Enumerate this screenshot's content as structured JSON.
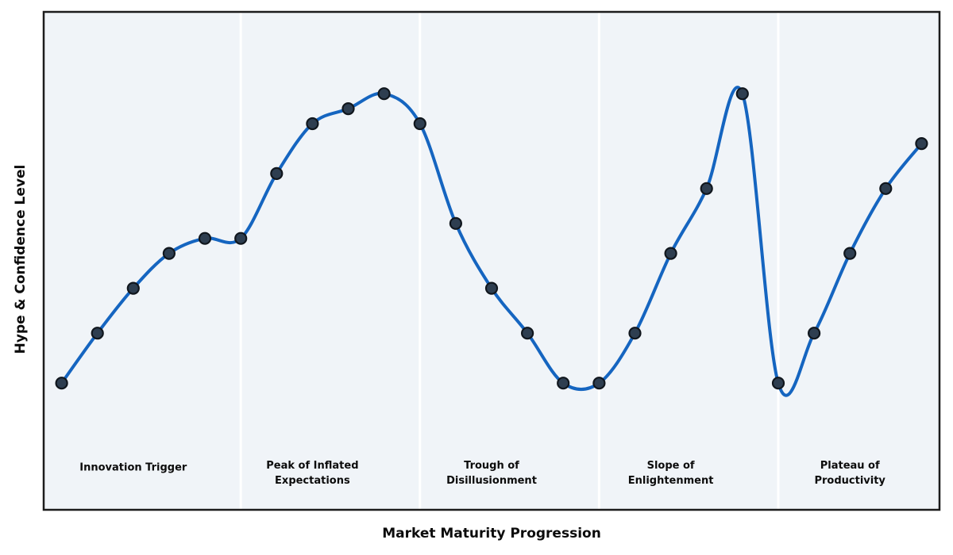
{
  "figure": {
    "background": "#ffffff",
    "plot_background": "#f0f4f8",
    "border_color": "#1c1c1c",
    "divider_color": "#ffffff",
    "text_color": "#0c0c0c"
  },
  "chart_data": {
    "type": "line",
    "title": "",
    "xlabel": "Market Maturity Progression",
    "ylabel": "Hype & Confidence Level",
    "x": [
      0,
      1,
      2,
      3,
      4,
      5,
      6,
      7,
      8,
      9,
      10,
      11,
      12,
      13,
      14,
      15,
      16,
      17,
      18,
      19,
      20,
      21,
      22,
      23,
      24
    ],
    "values": [
      20,
      30,
      39,
      46,
      49,
      49,
      62,
      72,
      75,
      78,
      72,
      52,
      39,
      30,
      20,
      20,
      30,
      46,
      59,
      78,
      20,
      30,
      46,
      59,
      68
    ],
    "xlim": [
      -0.5,
      24.5
    ],
    "ylim": [
      -5.4,
      94.4
    ],
    "grid": false,
    "legend": null,
    "line_color": "#1565c0",
    "line_width": 4,
    "marker": "circle",
    "marker_fill": "#2e3e50",
    "marker_edge": "#10161d",
    "phase_boundaries_x": [
      5,
      10,
      15,
      20
    ],
    "phases": [
      {
        "label": "Innovation Trigger",
        "center_x": 2
      },
      {
        "label": "Peak of Inflated\nExpectations",
        "center_x": 7
      },
      {
        "label": "Trough of\nDisillusionment",
        "center_x": 12
      },
      {
        "label": "Slope of\nEnlightenment",
        "center_x": 17
      },
      {
        "label": "Plateau of\nProductivity",
        "center_x": 22
      }
    ]
  }
}
